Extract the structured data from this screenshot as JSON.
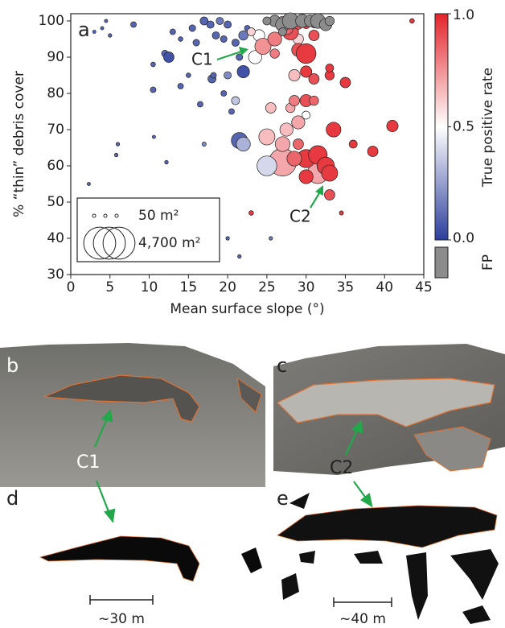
{
  "chart_data": {
    "type": "scatter",
    "panel_label": "a",
    "xlabel": "Mean surface slope (°)",
    "ylabel": "% “thin” debris cover",
    "xlim": [
      0,
      45
    ],
    "ylim": [
      30,
      102
    ],
    "xticks": [
      0,
      5,
      10,
      15,
      20,
      25,
      30,
      35,
      40,
      45
    ],
    "yticks": [
      30,
      40,
      50,
      60,
      70,
      80,
      90,
      100
    ],
    "points": {
      "x": [
        2.3,
        3,
        4,
        4.5,
        5,
        6,
        5.8,
        8,
        10.5,
        10.5,
        10.6,
        12,
        12.5,
        12.2,
        13,
        14,
        14,
        15,
        15.5,
        16,
        16.5,
        17,
        17.8,
        18,
        18.5,
        18.2,
        19,
        19.5,
        19.5,
        20,
        20.5,
        20,
        21,
        21,
        21.5,
        22,
        22,
        21.5,
        22,
        22.5,
        20,
        21.5,
        17,
        25.5,
        27,
        25,
        25,
        27,
        27.5,
        29,
        30,
        31.5,
        24,
        23.5,
        24.5,
        23,
        26,
        27,
        26,
        25.5,
        28.5,
        29,
        28,
        28,
        27.5,
        29,
        30,
        31,
        29,
        30,
        31,
        30,
        31,
        30,
        28.5,
        31,
        33,
        33,
        35,
        33.5,
        30,
        31.5,
        32.5,
        33,
        30,
        33,
        36,
        38.5,
        41,
        43.5,
        34.5,
        23,
        28.5,
        29
      ],
      "y": [
        55,
        97,
        98,
        100,
        96,
        66,
        63,
        99,
        88,
        81,
        68,
        91,
        90,
        61,
        97,
        95,
        82,
        85,
        98,
        94,
        77,
        100,
        99,
        84,
        96,
        85,
        100,
        95,
        80,
        99,
        75,
        85,
        94,
        78,
        90,
        96,
        86,
        67,
        66,
        98,
        40,
        35,
        66,
        40,
        61,
        60,
        68,
        66,
        70,
        72,
        74,
        58,
        96,
        90,
        93,
        97,
        95,
        100,
        91,
        76,
        85,
        95,
        76,
        97,
        98,
        99,
        99,
        99,
        92,
        91,
        96,
        86,
        84,
        78,
        78,
        78,
        85,
        87,
        83,
        70,
        62,
        63,
        60,
        58,
        57,
        52,
        66,
        64,
        71,
        100,
        47,
        47,
        62,
        66
      ],
      "size": [
        50,
        50,
        50,
        50,
        60,
        60,
        60,
        150,
        100,
        150,
        50,
        200,
        500,
        60,
        150,
        100,
        150,
        100,
        200,
        200,
        150,
        300,
        250,
        300,
        250,
        150,
        250,
        200,
        150,
        250,
        150,
        250,
        250,
        300,
        200,
        400,
        700,
        1200,
        900,
        150,
        60,
        60,
        80,
        60,
        3500,
        1800,
        1200,
        1000,
        800,
        800,
        300,
        2000,
        600,
        800,
        1200,
        300,
        900,
        400,
        400,
        500,
        600,
        500,
        400,
        1200,
        800,
        400,
        300,
        200,
        800,
        1800,
        500,
        600,
        500,
        700,
        500,
        400,
        400,
        300,
        500,
        1000,
        1500,
        1600,
        1400,
        1200,
        900,
        500,
        300,
        500,
        600,
        100,
        80,
        100,
        1000,
        500
      ],
      "rate": [
        0.1,
        0.1,
        0.1,
        0.1,
        0.1,
        0.1,
        0.1,
        0.1,
        0.1,
        0.1,
        0.1,
        0.1,
        0.05,
        0.1,
        0.1,
        0.1,
        0.1,
        0.1,
        0.1,
        0.1,
        0.1,
        0.1,
        0.1,
        0.1,
        0.1,
        0.1,
        0.15,
        0.1,
        0.1,
        0.1,
        0.1,
        0.2,
        0.1,
        0.35,
        0.1,
        0.15,
        0.05,
        0.1,
        0.3,
        0.1,
        0.1,
        0.1,
        0.2,
        0.15,
        0.7,
        0.4,
        0.65,
        0.7,
        0.65,
        0.7,
        0.5,
        0.7,
        0.5,
        0.5,
        0.75,
        0.6,
        0.8,
        0.7,
        0.8,
        0.65,
        0.65,
        0.6,
        0.7,
        0.9,
        0.85,
        0.9,
        0.95,
        0.9,
        0.9,
        0.95,
        0.9,
        0.95,
        0.9,
        0.9,
        0.8,
        0.85,
        0.95,
        0.95,
        0.95,
        0.95,
        0.95,
        0.95,
        0.95,
        0.95,
        0.95,
        0.9,
        0.95,
        0.95,
        0.95,
        0.95,
        0.95,
        0.95,
        0.85,
        0.85
      ]
    },
    "fp": {
      "label": "FP",
      "color": "#8c8c8c",
      "x": [
        26,
        27,
        28,
        29.5,
        30.5,
        31.5,
        32.5,
        33,
        27,
        25
      ],
      "y": [
        100,
        99,
        100,
        100,
        100,
        100,
        99,
        100,
        97,
        100
      ],
      "size": [
        600,
        900,
        1200,
        800,
        600,
        1000,
        700,
        400,
        300,
        300
      ]
    },
    "colorbar": {
      "label": "True positive rate",
      "colors": [
        "#2c3e9c",
        "#ffffff",
        "#e3242b"
      ],
      "ticks": [
        {
          "value": 0,
          "label": "0.0"
        },
        {
          "value": 0.5,
          "label": "0.5"
        },
        {
          "value": 1,
          "label": "1.0"
        }
      ]
    },
    "size_legend": [
      {
        "value": 50,
        "label": "50 m²"
      },
      {
        "value": 4700,
        "label": "4,700 m²"
      }
    ],
    "annotations": [
      "C1",
      "C2"
    ]
  },
  "panels": {
    "b": "b",
    "c": "c",
    "d": "d",
    "e": "e",
    "c1": "C1",
    "c2": "C2",
    "scale_d": "~30 m",
    "scale_e": "~40 m"
  }
}
